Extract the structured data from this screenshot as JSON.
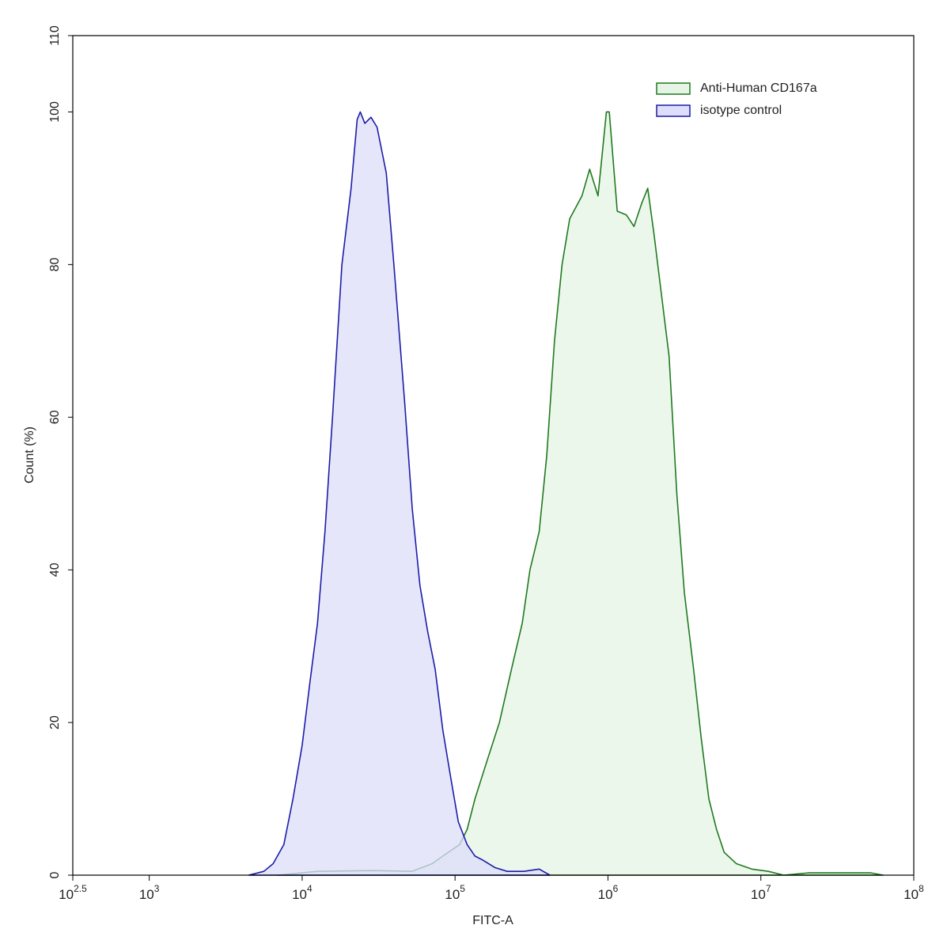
{
  "chart_data": {
    "type": "area",
    "x_label": "FITC-A",
    "y_label": "Count  (%)",
    "x_log": true,
    "xlim": [
      316.2278,
      100000000
    ],
    "xticks": [
      {
        "value": 316.2278,
        "label": "10",
        "exponent": "2.5"
      },
      {
        "value": 1000,
        "label": "10",
        "exponent": "3"
      },
      {
        "value": 10000,
        "label": "10",
        "exponent": "4"
      },
      {
        "value": 100000,
        "label": "10",
        "exponent": "5"
      },
      {
        "value": 1000000,
        "label": "10",
        "exponent": "6"
      },
      {
        "value": 10000000,
        "label": "10",
        "exponent": "7"
      },
      {
        "value": 100000000,
        "label": "10",
        "exponent": "8"
      }
    ],
    "ylim": [
      0,
      110
    ],
    "yticks": [
      0,
      20,
      40,
      60,
      80,
      100,
      110
    ],
    "legend": "top-right",
    "series": [
      {
        "name": "Anti-Human CD167a",
        "color": "#1f7a1f",
        "fill": "#e6f4e6",
        "x": [
          6920,
          12600,
          28800,
          52500,
          70800,
          83200,
          107000,
          120000,
          135000,
          162000,
          195000,
          234000,
          275000,
          309000,
          355000,
          398000,
          447000,
          501000,
          562000,
          676000,
          759000,
          861000,
          977000,
          1020000,
          1150000,
          1320000,
          1480000,
          1660000,
          1820000,
          2000000,
          2240000,
          2510000,
          2820000,
          3160000,
          3630000,
          4070000,
          4570000,
          5130000,
          5750000,
          6920000,
          8710000,
          11200000,
          14100000,
          20400000,
          41700000,
          52500000,
          63100000
        ],
        "values": [
          0,
          0.5,
          0.6,
          0.5,
          1.5,
          2.5,
          4,
          6,
          10,
          15,
          20,
          27,
          33,
          40,
          45,
          55,
          70,
          80,
          86,
          89,
          92.5,
          89,
          100,
          100,
          87,
          86.5,
          85,
          88,
          90,
          84,
          76,
          68,
          50,
          37,
          27,
          18,
          10,
          6,
          3,
          1.5,
          0.8,
          0.5,
          0,
          0.3,
          0.3,
          0.3,
          0
        ]
      },
      {
        "name": "isotype control",
        "color": "#1c1ca8",
        "fill": "#dedefa",
        "x": [
          4470,
          5620,
          6460,
          7590,
          8710,
          10000,
          11200,
          12600,
          14100,
          15800,
          18200,
          20900,
          22900,
          24000,
          25700,
          28200,
          30900,
          35500,
          39800,
          46800,
          52500,
          58900,
          66100,
          74100,
          83200,
          93300,
          105000,
          120000,
          135000,
          151000,
          182000,
          219000,
          282000,
          355000,
          417000
        ],
        "values": [
          0,
          0.5,
          1.5,
          4,
          10,
          17,
          25,
          33,
          45,
          60,
          80,
          90,
          99,
          100,
          98.5,
          99.3,
          98,
          92,
          80,
          62,
          48,
          38,
          32,
          27,
          19,
          13,
          7,
          4,
          2.5,
          2,
          1,
          0.5,
          0.5,
          0.8,
          0
        ]
      }
    ]
  }
}
